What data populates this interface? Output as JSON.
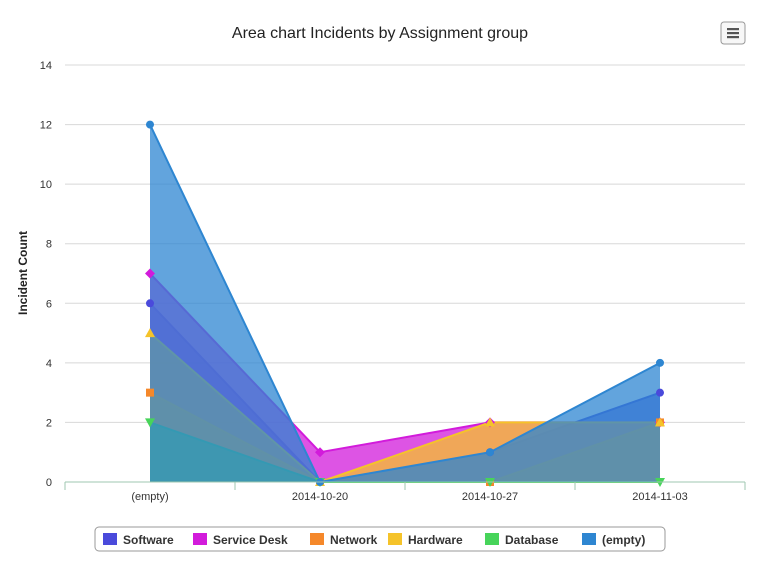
{
  "chart_data": {
    "type": "area",
    "title": "Area chart Incidents by Assignment group",
    "xlabel": "",
    "ylabel": "Incident Count",
    "categories": [
      "(empty)",
      "2014-10-20",
      "2014-10-27",
      "2014-11-03"
    ],
    "ylim": [
      0,
      14
    ],
    "yticks": [
      0,
      2,
      4,
      6,
      8,
      10,
      12,
      14
    ],
    "grid": true,
    "legend_position": "bottom",
    "series": [
      {
        "name": "Software",
        "values": [
          6,
          0,
          1,
          3
        ],
        "color": "#4a4adb",
        "marker": "circle"
      },
      {
        "name": "Service Desk",
        "values": [
          7,
          1,
          2,
          2
        ],
        "color": "#d21bdb",
        "marker": "diamond"
      },
      {
        "name": "Network",
        "values": [
          3,
          0,
          0,
          2
        ],
        "color": "#f5882a",
        "marker": "square"
      },
      {
        "name": "Hardware",
        "values": [
          5,
          0,
          2,
          2
        ],
        "color": "#f5c32a",
        "marker": "triangle"
      },
      {
        "name": "Database",
        "values": [
          2,
          0,
          0,
          0
        ],
        "color": "#47d45a",
        "marker": "triangle-down"
      },
      {
        "name": "(empty)",
        "values": [
          12,
          0,
          1,
          4
        ],
        "color": "#2e86d1",
        "marker": "circle"
      }
    ]
  },
  "toolbar": {
    "menu_icon": "hamburger-menu-icon"
  }
}
